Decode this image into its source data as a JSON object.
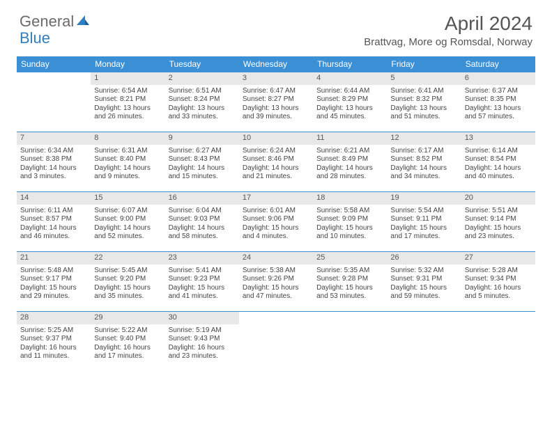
{
  "logo": {
    "text1": "General",
    "text2": "Blue"
  },
  "title": "April 2024",
  "location": "Brattvag, More og Romsdal, Norway",
  "colors": {
    "header_bg": "#3b8fd4",
    "daybar_bg": "#e8e8e8",
    "text": "#444444",
    "accent": "#2f7fc0"
  },
  "weekdays": [
    "Sunday",
    "Monday",
    "Tuesday",
    "Wednesday",
    "Thursday",
    "Friday",
    "Saturday"
  ],
  "weeks": [
    [
      {
        "n": "",
        "sunrise": "",
        "sunset": "",
        "daylight": ""
      },
      {
        "n": "1",
        "sunrise": "Sunrise: 6:54 AM",
        "sunset": "Sunset: 8:21 PM",
        "daylight": "Daylight: 13 hours and 26 minutes."
      },
      {
        "n": "2",
        "sunrise": "Sunrise: 6:51 AM",
        "sunset": "Sunset: 8:24 PM",
        "daylight": "Daylight: 13 hours and 33 minutes."
      },
      {
        "n": "3",
        "sunrise": "Sunrise: 6:47 AM",
        "sunset": "Sunset: 8:27 PM",
        "daylight": "Daylight: 13 hours and 39 minutes."
      },
      {
        "n": "4",
        "sunrise": "Sunrise: 6:44 AM",
        "sunset": "Sunset: 8:29 PM",
        "daylight": "Daylight: 13 hours and 45 minutes."
      },
      {
        "n": "5",
        "sunrise": "Sunrise: 6:41 AM",
        "sunset": "Sunset: 8:32 PM",
        "daylight": "Daylight: 13 hours and 51 minutes."
      },
      {
        "n": "6",
        "sunrise": "Sunrise: 6:37 AM",
        "sunset": "Sunset: 8:35 PM",
        "daylight": "Daylight: 13 hours and 57 minutes."
      }
    ],
    [
      {
        "n": "7",
        "sunrise": "Sunrise: 6:34 AM",
        "sunset": "Sunset: 8:38 PM",
        "daylight": "Daylight: 14 hours and 3 minutes."
      },
      {
        "n": "8",
        "sunrise": "Sunrise: 6:31 AM",
        "sunset": "Sunset: 8:40 PM",
        "daylight": "Daylight: 14 hours and 9 minutes."
      },
      {
        "n": "9",
        "sunrise": "Sunrise: 6:27 AM",
        "sunset": "Sunset: 8:43 PM",
        "daylight": "Daylight: 14 hours and 15 minutes."
      },
      {
        "n": "10",
        "sunrise": "Sunrise: 6:24 AM",
        "sunset": "Sunset: 8:46 PM",
        "daylight": "Daylight: 14 hours and 21 minutes."
      },
      {
        "n": "11",
        "sunrise": "Sunrise: 6:21 AM",
        "sunset": "Sunset: 8:49 PM",
        "daylight": "Daylight: 14 hours and 28 minutes."
      },
      {
        "n": "12",
        "sunrise": "Sunrise: 6:17 AM",
        "sunset": "Sunset: 8:52 PM",
        "daylight": "Daylight: 14 hours and 34 minutes."
      },
      {
        "n": "13",
        "sunrise": "Sunrise: 6:14 AM",
        "sunset": "Sunset: 8:54 PM",
        "daylight": "Daylight: 14 hours and 40 minutes."
      }
    ],
    [
      {
        "n": "14",
        "sunrise": "Sunrise: 6:11 AM",
        "sunset": "Sunset: 8:57 PM",
        "daylight": "Daylight: 14 hours and 46 minutes."
      },
      {
        "n": "15",
        "sunrise": "Sunrise: 6:07 AM",
        "sunset": "Sunset: 9:00 PM",
        "daylight": "Daylight: 14 hours and 52 minutes."
      },
      {
        "n": "16",
        "sunrise": "Sunrise: 6:04 AM",
        "sunset": "Sunset: 9:03 PM",
        "daylight": "Daylight: 14 hours and 58 minutes."
      },
      {
        "n": "17",
        "sunrise": "Sunrise: 6:01 AM",
        "sunset": "Sunset: 9:06 PM",
        "daylight": "Daylight: 15 hours and 4 minutes."
      },
      {
        "n": "18",
        "sunrise": "Sunrise: 5:58 AM",
        "sunset": "Sunset: 9:09 PM",
        "daylight": "Daylight: 15 hours and 10 minutes."
      },
      {
        "n": "19",
        "sunrise": "Sunrise: 5:54 AM",
        "sunset": "Sunset: 9:11 PM",
        "daylight": "Daylight: 15 hours and 17 minutes."
      },
      {
        "n": "20",
        "sunrise": "Sunrise: 5:51 AM",
        "sunset": "Sunset: 9:14 PM",
        "daylight": "Daylight: 15 hours and 23 minutes."
      }
    ],
    [
      {
        "n": "21",
        "sunrise": "Sunrise: 5:48 AM",
        "sunset": "Sunset: 9:17 PM",
        "daylight": "Daylight: 15 hours and 29 minutes."
      },
      {
        "n": "22",
        "sunrise": "Sunrise: 5:45 AM",
        "sunset": "Sunset: 9:20 PM",
        "daylight": "Daylight: 15 hours and 35 minutes."
      },
      {
        "n": "23",
        "sunrise": "Sunrise: 5:41 AM",
        "sunset": "Sunset: 9:23 PM",
        "daylight": "Daylight: 15 hours and 41 minutes."
      },
      {
        "n": "24",
        "sunrise": "Sunrise: 5:38 AM",
        "sunset": "Sunset: 9:26 PM",
        "daylight": "Daylight: 15 hours and 47 minutes."
      },
      {
        "n": "25",
        "sunrise": "Sunrise: 5:35 AM",
        "sunset": "Sunset: 9:28 PM",
        "daylight": "Daylight: 15 hours and 53 minutes."
      },
      {
        "n": "26",
        "sunrise": "Sunrise: 5:32 AM",
        "sunset": "Sunset: 9:31 PM",
        "daylight": "Daylight: 15 hours and 59 minutes."
      },
      {
        "n": "27",
        "sunrise": "Sunrise: 5:28 AM",
        "sunset": "Sunset: 9:34 PM",
        "daylight": "Daylight: 16 hours and 5 minutes."
      }
    ],
    [
      {
        "n": "28",
        "sunrise": "Sunrise: 5:25 AM",
        "sunset": "Sunset: 9:37 PM",
        "daylight": "Daylight: 16 hours and 11 minutes."
      },
      {
        "n": "29",
        "sunrise": "Sunrise: 5:22 AM",
        "sunset": "Sunset: 9:40 PM",
        "daylight": "Daylight: 16 hours and 17 minutes."
      },
      {
        "n": "30",
        "sunrise": "Sunrise: 5:19 AM",
        "sunset": "Sunset: 9:43 PM",
        "daylight": "Daylight: 16 hours and 23 minutes."
      },
      {
        "n": "",
        "sunrise": "",
        "sunset": "",
        "daylight": ""
      },
      {
        "n": "",
        "sunrise": "",
        "sunset": "",
        "daylight": ""
      },
      {
        "n": "",
        "sunrise": "",
        "sunset": "",
        "daylight": ""
      },
      {
        "n": "",
        "sunrise": "",
        "sunset": "",
        "daylight": ""
      }
    ]
  ]
}
